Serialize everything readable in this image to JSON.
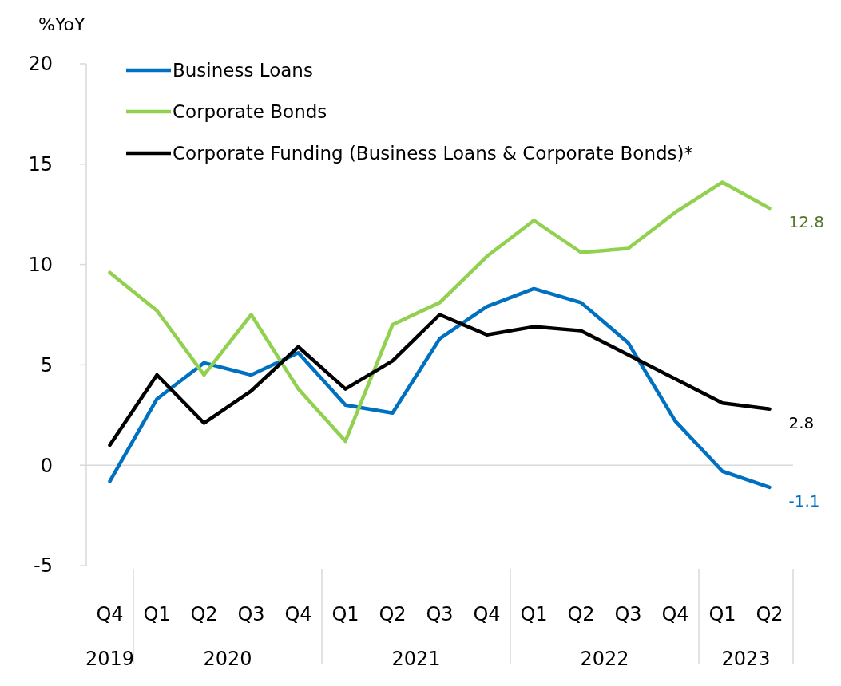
{
  "chart_data": {
    "type": "line",
    "ylabel": "%YoY",
    "categories": [
      "Q4",
      "Q1",
      "Q2",
      "Q3",
      "Q4",
      "Q1",
      "Q2",
      "Q3",
      "Q4",
      "Q1",
      "Q2",
      "Q3",
      "Q4",
      "Q1",
      "Q2"
    ],
    "series": [
      {
        "name": "Business Loans",
        "color": "#0070c0",
        "values": [
          -0.8,
          3.3,
          5.1,
          4.5,
          5.6,
          3.0,
          2.6,
          6.3,
          7.9,
          8.8,
          8.1,
          6.1,
          2.2,
          -0.3,
          -1.1
        ],
        "value_labels": [
          null,
          null,
          null,
          null,
          null,
          null,
          null,
          null,
          null,
          null,
          null,
          null,
          null,
          null,
          "-1.1"
        ]
      },
      {
        "name": "Corporate Bonds",
        "color": "#92d050",
        "values": [
          9.6,
          7.7,
          4.5,
          7.5,
          3.8,
          1.2,
          7.0,
          8.1,
          10.4,
          12.2,
          10.6,
          10.8,
          12.6,
          14.1,
          12.8
        ],
        "value_labels": [
          null,
          null,
          null,
          null,
          null,
          null,
          null,
          null,
          null,
          null,
          null,
          null,
          null,
          null,
          "12.8"
        ]
      },
      {
        "name": "Corporate Funding (Business Loans & Corporate Bonds)*",
        "color": "#000000",
        "values": [
          1.0,
          4.5,
          2.1,
          3.7,
          5.9,
          3.8,
          5.2,
          7.5,
          6.5,
          6.9,
          6.7,
          5.5,
          4.3,
          3.1,
          2.8
        ],
        "value_labels": [
          null,
          null,
          null,
          null,
          null,
          null,
          null,
          null,
          null,
          null,
          null,
          null,
          null,
          null,
          "2.8"
        ]
      }
    ],
    "annotations": [
      "2019",
      "2020",
      "2021",
      "2022",
      "2023"
    ],
    "ylim": [
      -5,
      20
    ],
    "yticks": [
      -5,
      0,
      5,
      10,
      15,
      20
    ],
    "legend": "top left",
    "marker": "none",
    "line_style": "solid"
  }
}
